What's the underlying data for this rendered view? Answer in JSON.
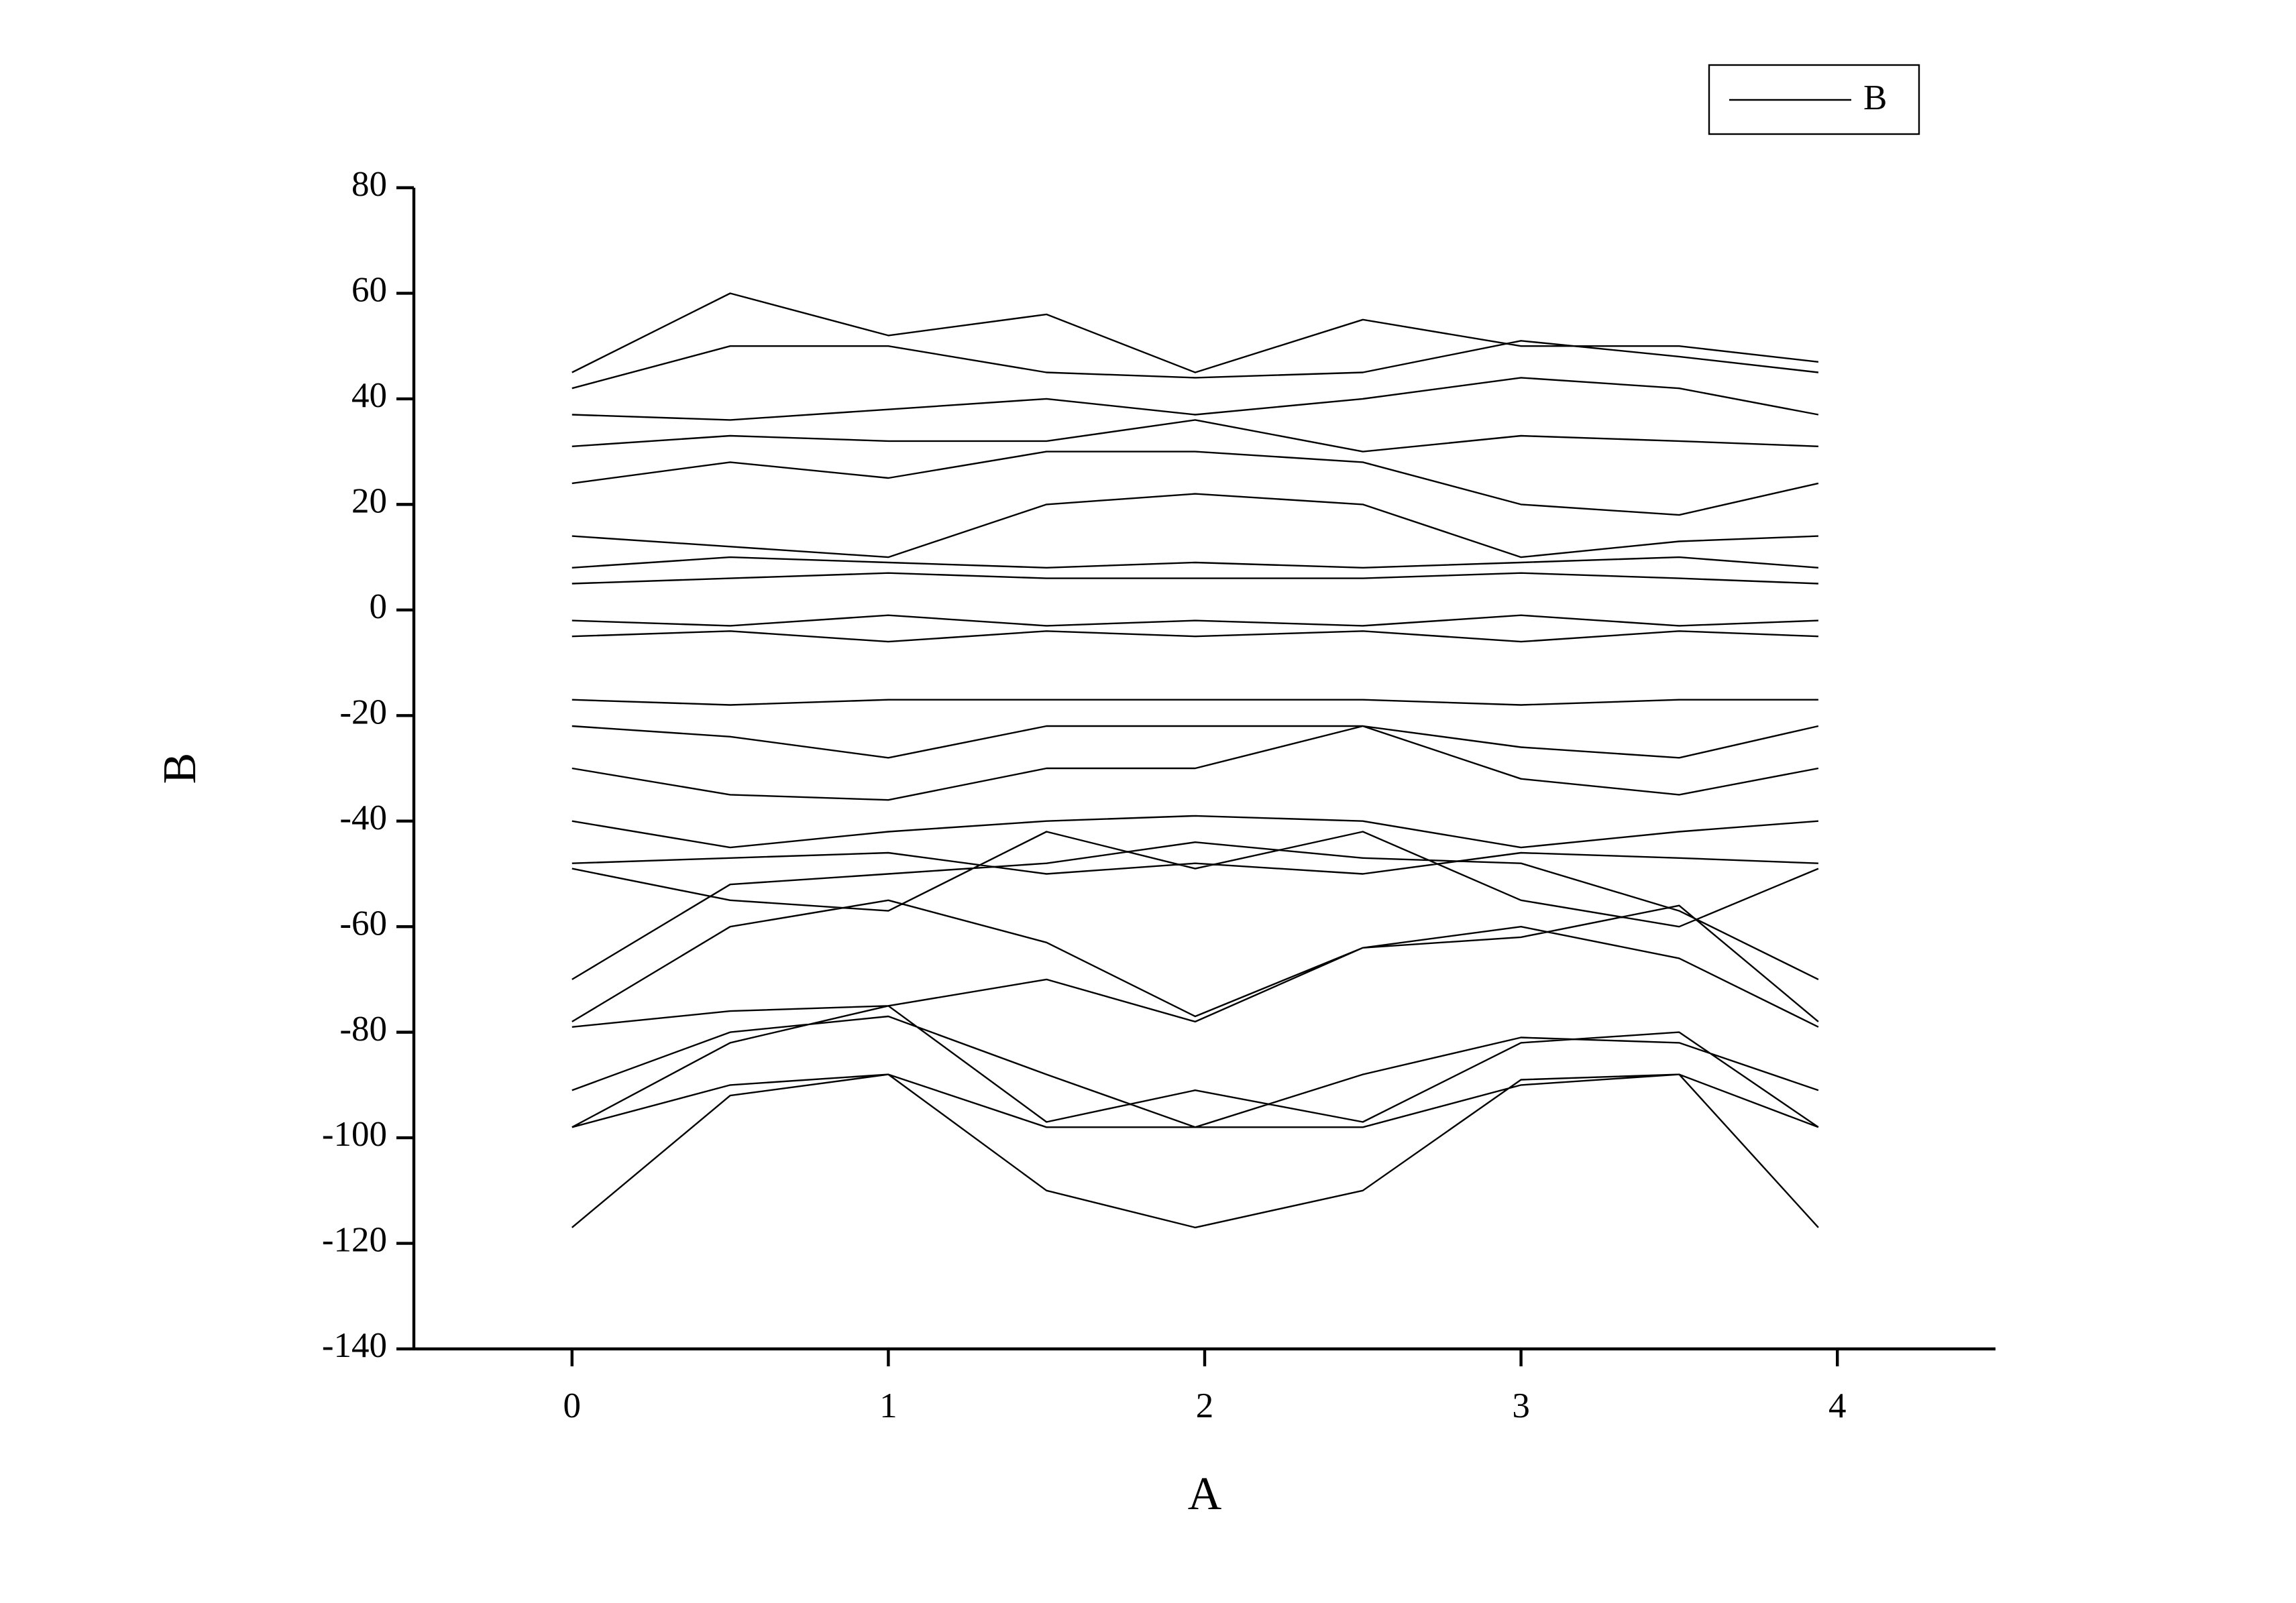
{
  "chart_data": {
    "type": "line",
    "x_label": "A",
    "y_label": "B",
    "xlim": [
      -0.5,
      4.5
    ],
    "xticks": [
      0,
      1,
      2,
      3,
      4
    ],
    "ylim": [
      -140,
      80
    ],
    "yticks": [
      -140,
      -120,
      -100,
      -80,
      -60,
      -40,
      -20,
      0,
      20,
      40,
      60,
      80
    ],
    "legend": "top-right",
    "x": [
      0,
      0.5,
      1,
      1.5,
      1.97,
      2.5,
      3,
      3.5,
      3.94,
      null,
      0,
      0.5,
      1,
      1.5,
      1.97,
      2.5,
      3,
      3.5,
      3.94,
      null,
      0,
      0.5,
      1,
      1.5,
      1.97,
      2.5,
      3,
      3.5,
      3.94,
      null,
      0,
      0.5,
      1,
      1.5,
      1.97,
      2.5,
      3,
      3.5,
      3.94,
      null,
      0,
      0.5,
      1,
      1.5,
      1.97,
      2.5,
      3,
      3.5,
      3.94,
      null,
      0,
      0.5,
      1,
      1.5,
      1.97,
      2.5,
      3,
      3.5,
      3.94,
      null,
      0,
      0.5,
      1,
      1.5,
      1.97,
      2.5,
      3,
      3.5,
      3.94,
      null,
      0,
      0.5,
      1,
      1.5,
      1.97,
      2.5,
      3,
      3.5,
      3.94,
      null,
      0,
      0.5,
      1,
      1.5,
      1.97,
      2.5,
      3,
      3.5,
      3.94,
      null,
      0,
      0.5,
      1,
      1.5,
      1.97,
      2.5,
      3,
      3.5,
      3.94,
      null,
      0,
      0.5,
      1,
      1.5,
      1.97,
      2.5,
      3,
      3.5,
      3.94,
      null,
      0,
      0.5,
      1,
      1.5,
      1.97,
      2.5,
      3,
      3.5,
      3.94,
      null,
      0,
      0.5,
      1,
      1.5,
      1.97,
      2.5,
      3,
      3.5,
      3.94,
      null,
      0,
      0.5,
      1,
      1.5,
      1.97,
      2.5,
      3,
      3.5,
      3.94,
      null,
      0,
      0.5,
      1,
      1.5,
      1.97,
      2.5,
      3,
      3.5,
      3.94,
      null,
      0,
      0.5,
      1,
      1.5,
      1.97,
      2.5,
      3,
      3.5,
      3.94,
      null,
      0,
      0.5,
      1,
      1.5,
      1.97,
      2.5,
      3,
      3.5,
      3.94,
      null,
      0,
      0.5,
      1,
      1.5,
      1.97,
      2.5,
      3,
      3.5,
      3.94,
      null,
      0,
      0.5,
      1,
      1.5,
      1.97,
      2.5,
      3,
      3.5,
      3.94,
      null,
      0,
      0.5,
      1,
      1.5,
      1.97,
      2.5,
      3,
      3.5,
      3.94,
      null,
      0,
      0.5,
      1,
      1.5,
      1.97,
      2.5,
      3,
      3.5,
      3.94,
      null,
      0,
      0.5,
      1,
      1.5,
      1.97,
      2.5,
      3,
      3.5,
      3.94,
      null,
      0,
      0.5,
      1,
      1.5,
      1.97,
      2.5,
      3,
      3.5,
      3.94
    ],
    "series": [
      {
        "name": "B",
        "color": "#000000",
        "values": [
          -117,
          -92,
          -88,
          -110,
          -117,
          -110,
          -89,
          -88,
          -117,
          null,
          -98,
          -90,
          -88,
          -98,
          -98,
          -98,
          -90,
          -88,
          -98,
          null,
          -98,
          -82,
          -75,
          -97,
          -91,
          -97,
          -82,
          -80,
          -98,
          null,
          -91,
          -80,
          -77,
          -88,
          -98,
          -88,
          -81,
          -82,
          -91,
          null,
          -79,
          -76,
          -75,
          -70,
          -78,
          -64,
          -60,
          -66,
          -79,
          null,
          -78,
          -60,
          -55,
          -63,
          -77,
          -64,
          -62,
          -56,
          -78,
          null,
          -70,
          -52,
          -50,
          -48,
          -44,
          -47,
          -48,
          -57,
          -70,
          null,
          -49,
          -55,
          -57,
          -42,
          -49,
          -42,
          -55,
          -60,
          -49,
          null,
          -48,
          -47,
          -46,
          -50,
          -48,
          -50,
          -46,
          -47,
          -48,
          null,
          -40,
          -45,
          -42,
          -40,
          -39,
          -40,
          -45,
          -42,
          -40,
          null,
          -30,
          -35,
          -36,
          -30,
          -30,
          -22,
          -32,
          -35,
          -30,
          null,
          -22,
          -24,
          -28,
          -22,
          -22,
          -22,
          -26,
          -28,
          -22,
          null,
          -17,
          -18,
          -17,
          -17,
          -17,
          -17,
          -18,
          -17,
          -17,
          null,
          -5,
          -4,
          -6,
          -4,
          -5,
          -4,
          -6,
          -4,
          -5,
          null,
          -2,
          -3,
          -1,
          -3,
          -2,
          -3,
          -1,
          -3,
          -2,
          null,
          5,
          6,
          7,
          6,
          6,
          6,
          7,
          6,
          5,
          null,
          8,
          10,
          9,
          8,
          9,
          8,
          9,
          10,
          8,
          null,
          14,
          12,
          10,
          20,
          22,
          20,
          10,
          13,
          14,
          null,
          24,
          28,
          25,
          30,
          30,
          28,
          20,
          18,
          24,
          null,
          31,
          33,
          32,
          32,
          36,
          30,
          33,
          32,
          31,
          null,
          37,
          36,
          38,
          40,
          37,
          40,
          44,
          42,
          37,
          null,
          42,
          50,
          50,
          45,
          44,
          45,
          51,
          48,
          45,
          null,
          45,
          60,
          52,
          56,
          45,
          55,
          50,
          50,
          47
        ]
      }
    ]
  }
}
